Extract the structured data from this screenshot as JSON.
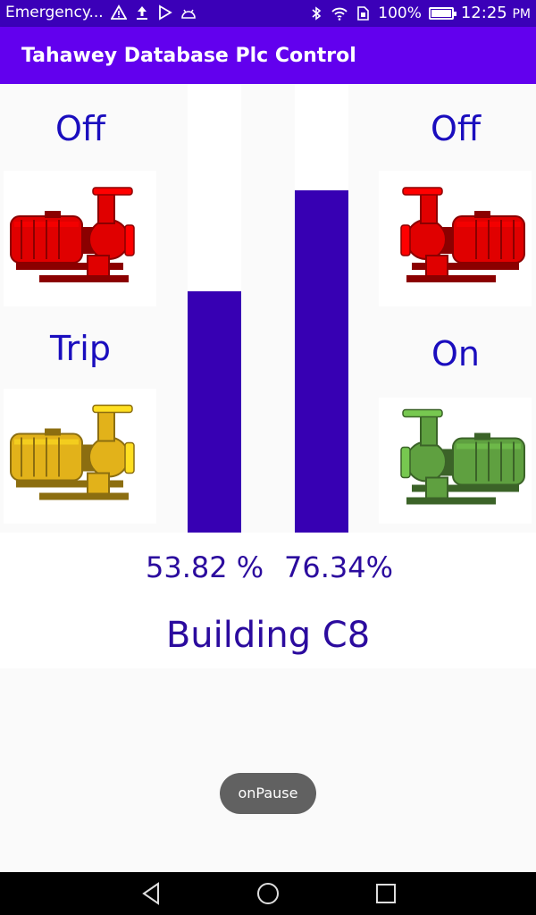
{
  "status_bar": {
    "notification_text": "Emergency...",
    "battery_percent": "100%",
    "time": "12:25",
    "time_suffix": "PM",
    "icons": [
      "warning-icon",
      "upload-icon",
      "play-store-icon",
      "android-icon",
      "bluetooth-icon",
      "wifi-icon",
      "sim-icon",
      "battery-icon"
    ]
  },
  "app_bar": {
    "title": "Tahawey Database Plc Control"
  },
  "pumps": {
    "top_left": {
      "status": "Off",
      "state_color": "#e00000"
    },
    "bottom_left": {
      "status": "Trip",
      "state_color": "#e2b21a"
    },
    "top_right": {
      "status": "Off",
      "state_color": "#e00000"
    },
    "bottom_right": {
      "status": "On",
      "state_color": "#5fa040"
    }
  },
  "tanks": {
    "left": {
      "level_fraction": 0.5382,
      "label": "53.82 %"
    },
    "right": {
      "level_fraction": 0.7634,
      "label": "76.34%"
    }
  },
  "building": "Building C8",
  "toast": "onPause",
  "colors": {
    "status_bar": "#3b00b8",
    "app_bar": "#6200ee",
    "tank_fill": "#3700b3",
    "text_accent": "#1a0dbe"
  }
}
